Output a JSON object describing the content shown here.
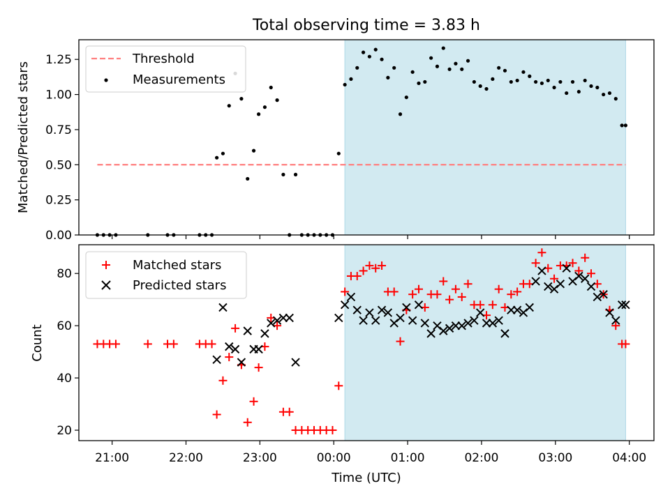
{
  "figure_title": "Total observing time = 3.83 h",
  "colors": {
    "shade": "#add8e6",
    "threshold": "#ff7f7f",
    "measurement": "#000000",
    "matched": "#ff0000",
    "predicted": "#000000"
  },
  "chart_data": [
    {
      "type": "scatter",
      "title": "Total observing time = 3.83 h",
      "xlabel": "",
      "ylabel": "Matched/Predicted stars",
      "xlim": [
        "20:33",
        "04:20"
      ],
      "ylim": [
        0,
        1.39
      ],
      "yticks": [
        "0.00",
        "0.25",
        "0.50",
        "0.75",
        "1.00",
        "1.25"
      ],
      "grid": false,
      "legend_position": "upper left",
      "shaded_interval": [
        "00:09",
        "03:57"
      ],
      "threshold": {
        "name": "Threshold",
        "y": 0.5,
        "x_start": "20:48",
        "x_end": "03:57"
      },
      "series": [
        {
          "name": "Measurements",
          "marker": "dot",
          "x": [
            "20:48",
            "20:53",
            "20:58",
            "21:03",
            "21:29",
            "21:45",
            "21:50",
            "22:11",
            "22:16",
            "22:21",
            "22:25",
            "22:30",
            "22:35",
            "22:40",
            "22:45",
            "22:50",
            "22:55",
            "22:59",
            "23:04",
            "23:09",
            "23:14",
            "23:19",
            "23:24",
            "23:29",
            "23:34",
            "23:39",
            "23:44",
            "23:49",
            "23:54",
            "23:59",
            "00:04",
            "00:09",
            "00:14",
            "00:19",
            "00:24",
            "00:29",
            "00:34",
            "00:39",
            "00:44",
            "00:49",
            "00:54",
            "00:59",
            "01:04",
            "01:09",
            "01:14",
            "01:19",
            "01:24",
            "01:29",
            "01:34",
            "01:39",
            "01:44",
            "01:49",
            "01:54",
            "01:59",
            "02:04",
            "02:09",
            "02:14",
            "02:19",
            "02:24",
            "02:29",
            "02:34",
            "02:39",
            "02:44",
            "02:49",
            "02:54",
            "02:59",
            "03:04",
            "03:09",
            "03:14",
            "03:19",
            "03:24",
            "03:29",
            "03:34",
            "03:39",
            "03:44",
            "03:49",
            "03:54",
            "03:57"
          ],
          "y": [
            0,
            0,
            0,
            0,
            0,
            0,
            0,
            0,
            0,
            0,
            0.55,
            0.58,
            0.92,
            1.15,
            0.97,
            0.4,
            0.6,
            0.86,
            0.91,
            1.05,
            0.96,
            0.43,
            0,
            0.43,
            0,
            0,
            0,
            0,
            0,
            0,
            0.58,
            1.07,
            1.11,
            1.19,
            1.3,
            1.27,
            1.32,
            1.25,
            1.12,
            1.19,
            0.86,
            0.98,
            1.16,
            1.08,
            1.09,
            1.26,
            1.2,
            1.33,
            1.18,
            1.22,
            1.18,
            1.24,
            1.09,
            1.06,
            1.04,
            1.11,
            1.19,
            1.17,
            1.09,
            1.1,
            1.16,
            1.13,
            1.09,
            1.08,
            1.1,
            1.05,
            1.09,
            1.01,
            1.09,
            1.02,
            1.1,
            1.06,
            1.05,
            1.0,
            1.01,
            0.97,
            0.78,
            0.78
          ]
        }
      ]
    },
    {
      "type": "scatter",
      "xlabel": "Time (UTC)",
      "ylabel": "Count",
      "xlim": [
        "20:33",
        "04:20"
      ],
      "ylim": [
        16,
        91
      ],
      "xticks": [
        "21:00",
        "22:00",
        "23:00",
        "00:00",
        "01:00",
        "02:00",
        "03:00",
        "04:00"
      ],
      "yticks": [
        "20",
        "40",
        "60",
        "80"
      ],
      "grid": false,
      "legend_position": "upper left",
      "shaded_interval": [
        "00:09",
        "03:57"
      ],
      "series": [
        {
          "name": "Matched stars",
          "marker": "plus",
          "x": [
            "20:48",
            "20:53",
            "20:58",
            "21:03",
            "21:29",
            "21:45",
            "21:50",
            "22:11",
            "22:16",
            "22:21",
            "22:25",
            "22:30",
            "22:35",
            "22:40",
            "22:45",
            "22:50",
            "22:55",
            "22:59",
            "23:04",
            "23:09",
            "23:14",
            "23:19",
            "23:24",
            "23:29",
            "23:34",
            "23:39",
            "23:44",
            "23:49",
            "23:54",
            "23:59",
            "00:04",
            "00:09",
            "00:14",
            "00:19",
            "00:24",
            "00:29",
            "00:34",
            "00:39",
            "00:44",
            "00:49",
            "00:54",
            "00:59",
            "01:04",
            "01:09",
            "01:14",
            "01:19",
            "01:24",
            "01:29",
            "01:34",
            "01:39",
            "01:44",
            "01:49",
            "01:54",
            "01:59",
            "02:04",
            "02:09",
            "02:14",
            "02:19",
            "02:24",
            "02:29",
            "02:34",
            "02:39",
            "02:44",
            "02:49",
            "02:54",
            "02:59",
            "03:04",
            "03:09",
            "03:14",
            "03:19",
            "03:24",
            "03:29",
            "03:34",
            "03:39",
            "03:44",
            "03:49",
            "03:54",
            "03:57"
          ],
          "y": [
            53,
            53,
            53,
            53,
            53,
            53,
            53,
            53,
            53,
            53,
            26,
            39,
            48,
            59,
            45,
            23,
            31,
            44,
            52,
            63,
            60,
            27,
            27,
            20,
            20,
            20,
            20,
            20,
            20,
            20,
            37,
            73,
            79,
            79,
            81,
            83,
            82,
            83,
            73,
            73,
            54,
            66,
            72,
            74,
            67,
            72,
            72,
            77,
            70,
            74,
            71,
            76,
            68,
            68,
            64,
            68,
            74,
            67,
            72,
            73,
            76,
            76,
            84,
            88,
            82,
            78,
            83,
            83,
            84,
            81,
            86,
            80,
            76,
            72,
            66,
            60,
            53,
            53
          ]
        },
        {
          "name": "Predicted stars",
          "marker": "x",
          "x": [
            "22:25",
            "22:30",
            "22:35",
            "22:40",
            "22:45",
            "22:50",
            "22:55",
            "22:59",
            "23:04",
            "23:09",
            "23:14",
            "23:19",
            "23:24",
            "23:29",
            "00:04",
            "00:09",
            "00:14",
            "00:19",
            "00:24",
            "00:29",
            "00:34",
            "00:39",
            "00:44",
            "00:49",
            "00:54",
            "00:59",
            "01:04",
            "01:09",
            "01:14",
            "01:19",
            "01:24",
            "01:29",
            "01:34",
            "01:39",
            "01:44",
            "01:49",
            "01:54",
            "01:59",
            "02:04",
            "02:09",
            "02:14",
            "02:19",
            "02:24",
            "02:29",
            "02:34",
            "02:39",
            "02:44",
            "02:49",
            "02:54",
            "02:59",
            "03:04",
            "03:09",
            "03:14",
            "03:19",
            "03:24",
            "03:29",
            "03:34",
            "03:39",
            "03:44",
            "03:49",
            "03:54",
            "03:57"
          ],
          "y": [
            47,
            67,
            52,
            51,
            46,
            58,
            51,
            51,
            57,
            61,
            62,
            63,
            63,
            46,
            63,
            68,
            71,
            66,
            62,
            65,
            62,
            66,
            65,
            61,
            63,
            67,
            62,
            68,
            61,
            57,
            60,
            58,
            59,
            60,
            60,
            61,
            62,
            65,
            61,
            61,
            62,
            57,
            66,
            66,
            65,
            67,
            77,
            81,
            75,
            74,
            76,
            82,
            77,
            79,
            78,
            75,
            71,
            72,
            65,
            62,
            68,
            68
          ]
        }
      ]
    }
  ]
}
